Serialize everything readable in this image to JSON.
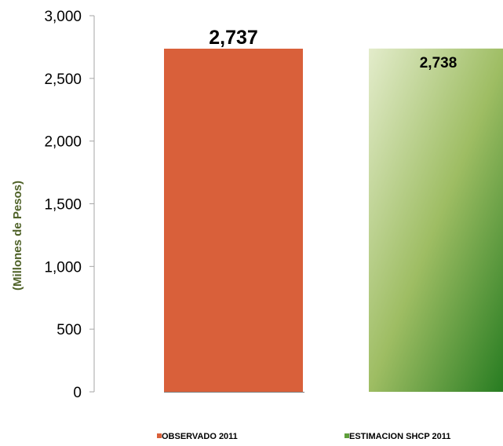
{
  "chart_data": {
    "type": "bar",
    "categories": [
      "OBSERVADO 2011",
      "ESTIMACION SHCP 2011"
    ],
    "values": [
      2737,
      2738
    ],
    "value_labels": [
      "2,737",
      "2,738"
    ],
    "ylabel": "(Millones de Pesos)",
    "ylim": [
      0,
      3000
    ],
    "yticks": [
      0,
      500,
      1000,
      1500,
      2000,
      2500,
      3000
    ],
    "ytick_labels": [
      "0",
      "500",
      "1,000",
      "1,500",
      "2,000",
      "2,500",
      "3,000"
    ],
    "grid": false,
    "legend": "bottom",
    "colors": {
      "observado": "#d9603a",
      "estimacion_light": "#e3eccb",
      "estimacion_mid": "#9ebd63",
      "estimacion_dark": "#237a1f",
      "axis_label": "#4f6228"
    }
  }
}
